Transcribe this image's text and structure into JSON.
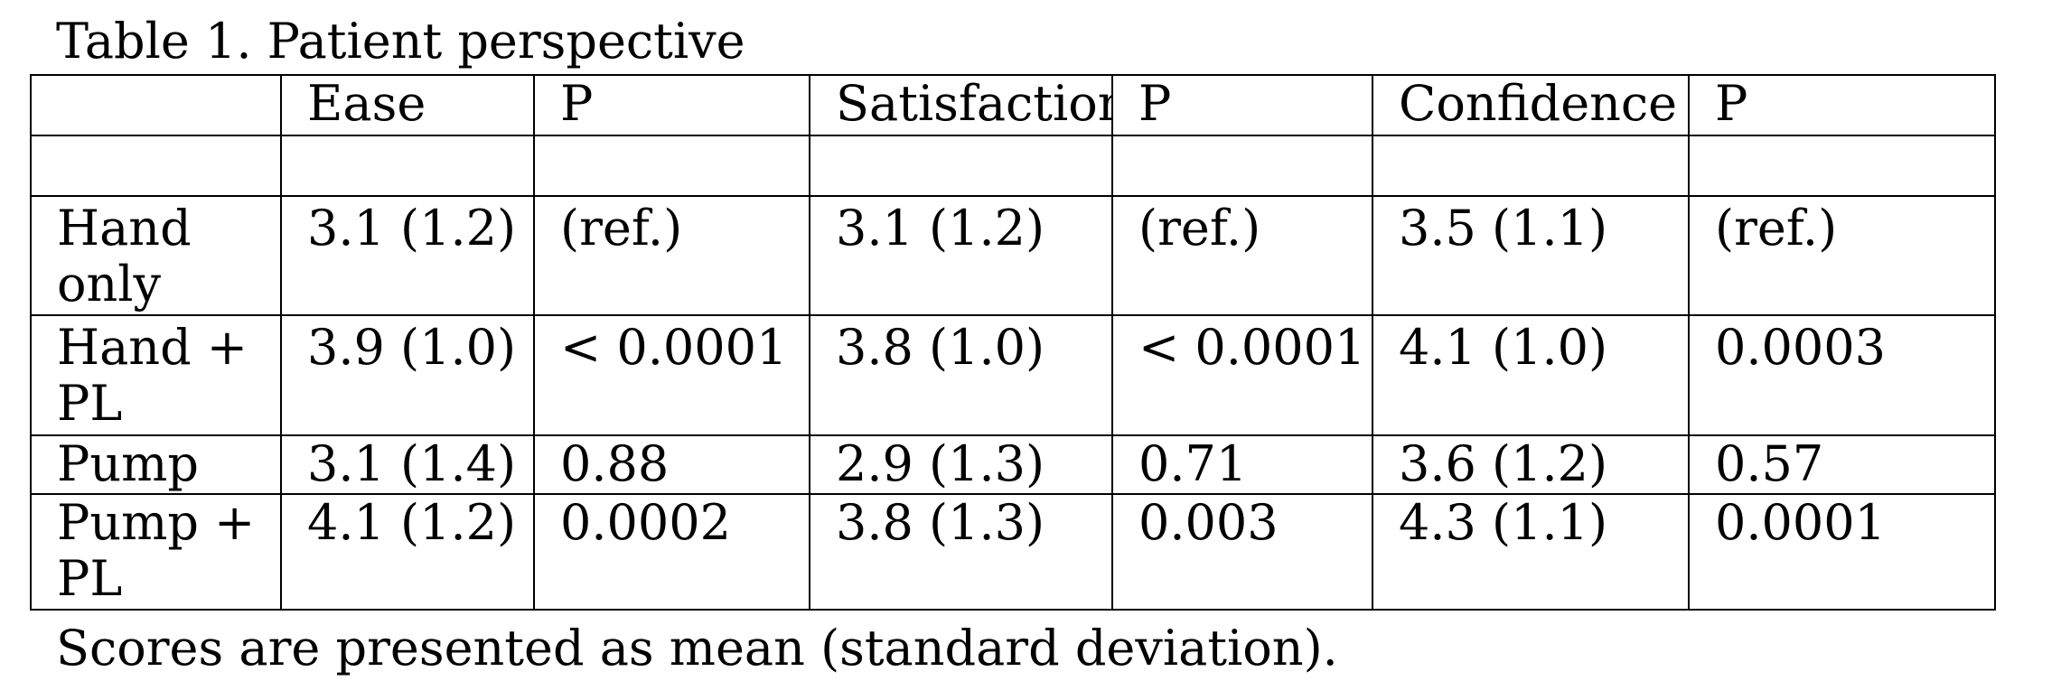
{
  "caption": "Table 1. Patient perspective",
  "table": {
    "columns": [
      "",
      "Ease",
      "P",
      "Satisfaction",
      "P",
      "Confidence",
      "P"
    ],
    "rows": [
      {
        "label": "Hand only",
        "values": [
          "3.1 (1.2)",
          "(ref.)",
          "3.1 (1.2)",
          "(ref.)",
          "3.5 (1.1)",
          "(ref.)"
        ]
      },
      {
        "label": "Hand + PL",
        "values": [
          "3.9 (1.0)",
          "< 0.0001",
          "3.8 (1.0)",
          "< 0.0001",
          "4.1 (1.0)",
          "0.0003"
        ]
      },
      {
        "label": "Pump",
        "values": [
          "3.1 (1.4)",
          "0.88",
          "2.9 (1.3)",
          "0.71",
          "3.6 (1.2)",
          "0.57"
        ]
      },
      {
        "label": "Pump + PL",
        "values": [
          "4.1 (1.2)",
          "0.0002",
          "3.8 (1.3)",
          "0.003",
          "4.3 (1.1)",
          "0.0001"
        ]
      }
    ]
  },
  "note": "Scores are presented as mean (standard deviation)."
}
